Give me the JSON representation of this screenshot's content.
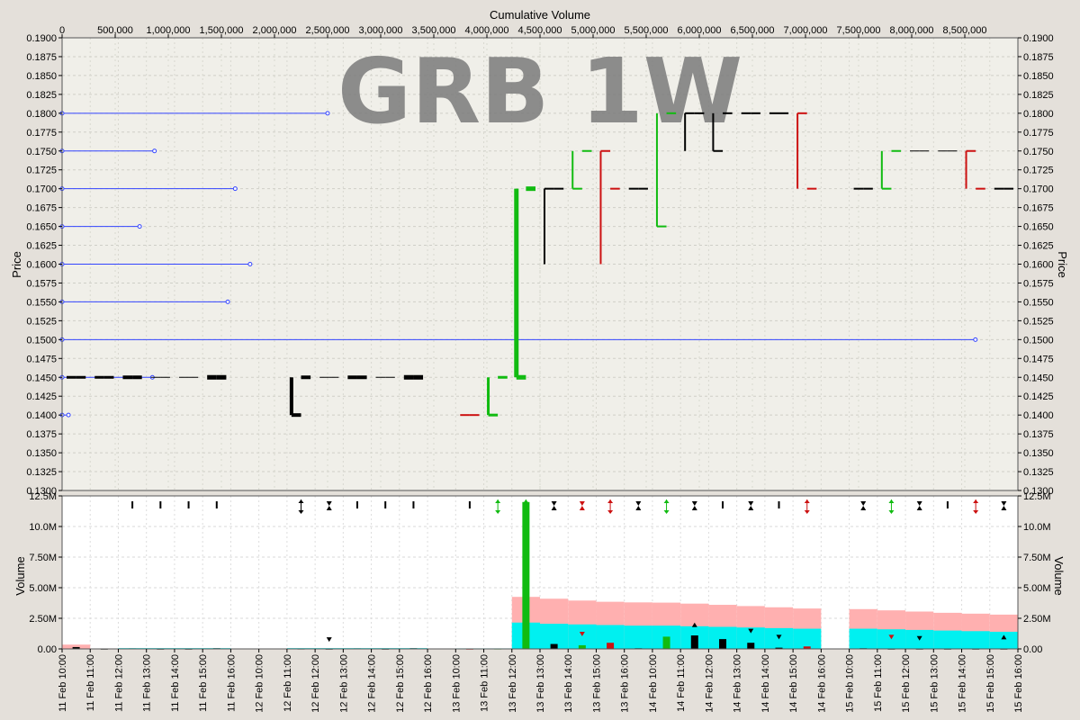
{
  "chart_data": {
    "type": "bar",
    "title": "GRB 1W",
    "price_panel": {
      "ylabel": "Price",
      "ylim": [
        0.13,
        0.19
      ],
      "yticks": [
        "0.1300",
        "0.1325",
        "0.1350",
        "0.1375",
        "0.1400",
        "0.1425",
        "0.1450",
        "0.1475",
        "0.1500",
        "0.1525",
        "0.1550",
        "0.1575",
        "0.1600",
        "0.1625",
        "0.1650",
        "0.1675",
        "0.1700",
        "0.1725",
        "0.1750",
        "0.1775",
        "0.1800",
        "0.1825",
        "0.1850",
        "0.1875",
        "0.1900"
      ],
      "xlabel_top": "Cumulative Volume",
      "cumvol_ticks": [
        "0",
        "500,000",
        "1,000,000",
        "1,500,000",
        "2,000,000",
        "2,500,000",
        "3,000,000",
        "3,500,000",
        "4,000,000",
        "4,500,000",
        "5,000,000",
        "5,500,000",
        "6,000,000",
        "6,500,000",
        "7,000,000",
        "7,500,000",
        "8,000,000",
        "8,500,000"
      ],
      "volume_by_price": [
        {
          "price": 0.18,
          "cumvol": 2500000
        },
        {
          "price": 0.175,
          "cumvol": 870000
        },
        {
          "price": 0.17,
          "cumvol": 1630000
        },
        {
          "price": 0.165,
          "cumvol": 730000
        },
        {
          "price": 0.16,
          "cumvol": 1770000
        },
        {
          "price": 0.155,
          "cumvol": 1560000
        },
        {
          "price": 0.15,
          "cumvol": 8600000
        },
        {
          "price": 0.145,
          "cumvol": 850000
        },
        {
          "price": 0.14,
          "cumvol": 60000
        }
      ],
      "bars": [
        {
          "t": 0.5,
          "o": 0.145,
          "h": 0.145,
          "l": 0.145,
          "c": 0.145,
          "color": "black",
          "w": 3
        },
        {
          "t": 1.5,
          "o": 0.145,
          "h": 0.145,
          "l": 0.145,
          "c": 0.145,
          "color": "black",
          "w": 3
        },
        {
          "t": 2.5,
          "o": 0.145,
          "h": 0.145,
          "l": 0.145,
          "c": 0.145,
          "color": "black",
          "w": 4
        },
        {
          "t": 3.5,
          "o": 0.145,
          "h": 0.145,
          "l": 0.145,
          "c": 0.145,
          "color": "black",
          "w": 1
        },
        {
          "t": 4.5,
          "o": 0.145,
          "h": 0.145,
          "l": 0.145,
          "c": 0.145,
          "color": "black",
          "w": 1
        },
        {
          "t": 5.5,
          "o": 0.145,
          "h": 0.145,
          "l": 0.145,
          "c": 0.145,
          "color": "black",
          "w": 5
        },
        {
          "t": 8.5,
          "o": 0.14,
          "h": 0.145,
          "l": 0.14,
          "c": 0.145,
          "color": "black",
          "w": 4
        },
        {
          "t": 9.5,
          "o": 0.145,
          "h": 0.145,
          "l": 0.145,
          "c": 0.145,
          "color": "black",
          "w": 1
        },
        {
          "t": 10.5,
          "o": 0.145,
          "h": 0.145,
          "l": 0.145,
          "c": 0.145,
          "color": "black",
          "w": 4
        },
        {
          "t": 11.5,
          "o": 0.145,
          "h": 0.145,
          "l": 0.145,
          "c": 0.145,
          "color": "black",
          "w": 1
        },
        {
          "t": 12.5,
          "o": 0.145,
          "h": 0.145,
          "l": 0.145,
          "c": 0.145,
          "color": "black",
          "w": 5
        },
        {
          "t": 14.5,
          "o": 0.14,
          "h": 0.14,
          "l": 0.14,
          "c": 0.14,
          "color": "red",
          "w": 2
        },
        {
          "t": 15.5,
          "o": 0.14,
          "h": 0.145,
          "l": 0.14,
          "c": 0.145,
          "color": "green",
          "w": 3
        },
        {
          "t": 16.5,
          "o": 0.145,
          "h": 0.17,
          "l": 0.145,
          "c": 0.17,
          "color": "green",
          "w": 5
        },
        {
          "t": 17.5,
          "o": 0.17,
          "h": 0.17,
          "l": 0.16,
          "c": 0.17,
          "color": "black",
          "w": 2
        },
        {
          "t": 18.5,
          "o": 0.17,
          "h": 0.175,
          "l": 0.17,
          "c": 0.175,
          "color": "green",
          "w": 2
        },
        {
          "t": 19.5,
          "o": 0.175,
          "h": 0.175,
          "l": 0.16,
          "c": 0.17,
          "color": "red",
          "w": 2
        },
        {
          "t": 20.5,
          "o": 0.17,
          "h": 0.17,
          "l": 0.17,
          "c": 0.17,
          "color": "black",
          "w": 2
        },
        {
          "t": 21.5,
          "o": 0.165,
          "h": 0.18,
          "l": 0.165,
          "c": 0.18,
          "color": "green",
          "w": 2
        },
        {
          "t": 22.5,
          "o": 0.18,
          "h": 0.18,
          "l": 0.175,
          "c": 0.18,
          "color": "black",
          "w": 2
        },
        {
          "t": 23.5,
          "o": 0.175,
          "h": 0.18,
          "l": 0.175,
          "c": 0.18,
          "color": "black",
          "w": 2
        },
        {
          "t": 24.5,
          "o": 0.18,
          "h": 0.18,
          "l": 0.18,
          "c": 0.18,
          "color": "black",
          "w": 2
        },
        {
          "t": 25.5,
          "o": 0.18,
          "h": 0.18,
          "l": 0.18,
          "c": 0.18,
          "color": "black",
          "w": 2
        },
        {
          "t": 26.5,
          "o": 0.18,
          "h": 0.18,
          "l": 0.17,
          "c": 0.17,
          "color": "red",
          "w": 2
        },
        {
          "t": 28.5,
          "o": 0.17,
          "h": 0.17,
          "l": 0.17,
          "c": 0.17,
          "color": "black",
          "w": 2
        },
        {
          "t": 29.5,
          "o": 0.17,
          "h": 0.175,
          "l": 0.17,
          "c": 0.175,
          "color": "green",
          "w": 2
        },
        {
          "t": 30.5,
          "o": 0.175,
          "h": 0.175,
          "l": 0.175,
          "c": 0.175,
          "color": "black",
          "w": 1
        },
        {
          "t": 31.5,
          "o": 0.175,
          "h": 0.175,
          "l": 0.175,
          "c": 0.175,
          "color": "black",
          "w": 1
        },
        {
          "t": 32.5,
          "o": 0.175,
          "h": 0.175,
          "l": 0.17,
          "c": 0.17,
          "color": "red",
          "w": 2
        },
        {
          "t": 33.5,
          "o": 0.17,
          "h": 0.17,
          "l": 0.17,
          "c": 0.17,
          "color": "black",
          "w": 2
        }
      ]
    },
    "volume_panel": {
      "ylabel": "Volume",
      "ylim": [
        0,
        12500000
      ],
      "yticks": [
        "0.00",
        "2.50M",
        "5.00M",
        "7.50M",
        "10.0M",
        "12.5M"
      ],
      "bars": [
        {
          "t": 0.5,
          "v": 150000,
          "color": "black"
        },
        {
          "t": 1.5,
          "v": 20000,
          "color": "black"
        },
        {
          "t": 2.5,
          "v": 40000,
          "color": "black"
        },
        {
          "t": 3.5,
          "v": 20000,
          "color": "black"
        },
        {
          "t": 4.5,
          "v": 20000,
          "color": "black"
        },
        {
          "t": 5.5,
          "v": 50000,
          "color": "black"
        },
        {
          "t": 8.5,
          "v": 30000,
          "color": "black"
        },
        {
          "t": 9.5,
          "v": 20000,
          "color": "black"
        },
        {
          "t": 10.5,
          "v": 40000,
          "color": "black"
        },
        {
          "t": 11.5,
          "v": 20000,
          "color": "black"
        },
        {
          "t": 12.5,
          "v": 50000,
          "color": "black"
        },
        {
          "t": 14.5,
          "v": 20000,
          "color": "red"
        },
        {
          "t": 15.5,
          "v": 30000,
          "color": "green"
        },
        {
          "t": 16.5,
          "v": 12000000,
          "color": "green"
        },
        {
          "t": 17.5,
          "v": 400000,
          "color": "black"
        },
        {
          "t": 18.5,
          "v": 300000,
          "color": "green"
        },
        {
          "t": 19.5,
          "v": 500000,
          "color": "red"
        },
        {
          "t": 20.5,
          "v": 50000,
          "color": "black"
        },
        {
          "t": 21.5,
          "v": 1000000,
          "color": "green"
        },
        {
          "t": 22.5,
          "v": 1100000,
          "color": "black"
        },
        {
          "t": 23.5,
          "v": 800000,
          "color": "black"
        },
        {
          "t": 24.5,
          "v": 500000,
          "color": "black"
        },
        {
          "t": 25.5,
          "v": 100000,
          "color": "black"
        },
        {
          "t": 26.5,
          "v": 200000,
          "color": "red"
        },
        {
          "t": 28.5,
          "v": 50000,
          "color": "black"
        },
        {
          "t": 29.5,
          "v": 20000,
          "color": "black"
        },
        {
          "t": 30.5,
          "v": 20000,
          "color": "black"
        },
        {
          "t": 31.5,
          "v": 20000,
          "color": "black"
        },
        {
          "t": 32.5,
          "v": 20000,
          "color": "black"
        },
        {
          "t": 33.5,
          "v": 20000,
          "color": "black"
        }
      ],
      "avg_pink": [
        {
          "t0": 0,
          "t1": 1,
          "v": 350000
        },
        {
          "t0": 16,
          "t1": 17,
          "v": 4250000
        },
        {
          "t0": 17,
          "t1": 18,
          "v": 4100000
        },
        {
          "t0": 18,
          "t1": 19,
          "v": 3950000
        },
        {
          "t0": 19,
          "t1": 20,
          "v": 3850000
        },
        {
          "t0": 20,
          "t1": 21,
          "v": 3800000
        },
        {
          "t0": 21,
          "t1": 22,
          "v": 3780000
        },
        {
          "t0": 22,
          "t1": 23,
          "v": 3700000
        },
        {
          "t0": 23,
          "t1": 24,
          "v": 3600000
        },
        {
          "t0": 24,
          "t1": 25,
          "v": 3500000
        },
        {
          "t0": 25,
          "t1": 26,
          "v": 3400000
        },
        {
          "t0": 26,
          "t1": 27,
          "v": 3300000
        },
        {
          "t0": 28,
          "t1": 29,
          "v": 3250000
        },
        {
          "t0": 29,
          "t1": 30,
          "v": 3150000
        },
        {
          "t0": 30,
          "t1": 31,
          "v": 3050000
        },
        {
          "t0": 31,
          "t1": 32,
          "v": 2950000
        },
        {
          "t0": 32,
          "t1": 33,
          "v": 2880000
        },
        {
          "t0": 33,
          "t1": 34,
          "v": 2800000
        }
      ],
      "avg_cyan": [
        {
          "t0": 2,
          "t1": 6,
          "v": 60000
        },
        {
          "t0": 8,
          "t1": 13,
          "v": 60000
        },
        {
          "t0": 14,
          "t1": 16,
          "v": 40000
        },
        {
          "t0": 16,
          "t1": 17,
          "v": 2150000
        },
        {
          "t0": 17,
          "t1": 18,
          "v": 2050000
        },
        {
          "t0": 18,
          "t1": 19,
          "v": 2000000
        },
        {
          "t0": 19,
          "t1": 20,
          "v": 1950000
        },
        {
          "t0": 20,
          "t1": 21,
          "v": 1900000
        },
        {
          "t0": 21,
          "t1": 22,
          "v": 1900000
        },
        {
          "t0": 22,
          "t1": 23,
          "v": 1850000
        },
        {
          "t0": 23,
          "t1": 24,
          "v": 1800000
        },
        {
          "t0": 24,
          "t1": 25,
          "v": 1750000
        },
        {
          "t0": 25,
          "t1": 26,
          "v": 1700000
        },
        {
          "t0": 26,
          "t1": 27,
          "v": 1650000
        },
        {
          "t0": 28,
          "t1": 29,
          "v": 1650000
        },
        {
          "t0": 29,
          "t1": 30,
          "v": 1600000
        },
        {
          "t0": 30,
          "t1": 31,
          "v": 1550000
        },
        {
          "t0": 31,
          "t1": 32,
          "v": 1500000
        },
        {
          "t0": 32,
          "t1": 33,
          "v": 1450000
        },
        {
          "t0": 33,
          "t1": 34,
          "v": 1400000
        }
      ],
      "top_markers": [
        {
          "t": 2.5,
          "type": "dash",
          "color": "black"
        },
        {
          "t": 3.5,
          "type": "dash",
          "color": "black"
        },
        {
          "t": 4.5,
          "type": "dash",
          "color": "black"
        },
        {
          "t": 5.5,
          "type": "dash",
          "color": "black"
        },
        {
          "t": 8.5,
          "type": "updown",
          "color": "black"
        },
        {
          "t": 9.5,
          "type": "hourglass",
          "color": "black"
        },
        {
          "t": 10.5,
          "type": "dash",
          "color": "black"
        },
        {
          "t": 11.5,
          "type": "dash",
          "color": "black"
        },
        {
          "t": 12.5,
          "type": "dash",
          "color": "black"
        },
        {
          "t": 14.5,
          "type": "dash",
          "color": "black"
        },
        {
          "t": 15.5,
          "type": "updown",
          "color": "green"
        },
        {
          "t": 16.5,
          "type": "updown",
          "color": "green"
        },
        {
          "t": 17.5,
          "type": "hourglass",
          "color": "black"
        },
        {
          "t": 18.5,
          "type": "hourglass",
          "color": "red"
        },
        {
          "t": 19.5,
          "type": "updown",
          "color": "red"
        },
        {
          "t": 20.5,
          "type": "hourglass",
          "color": "black"
        },
        {
          "t": 21.5,
          "type": "updown",
          "color": "green"
        },
        {
          "t": 22.5,
          "type": "hourglass",
          "color": "black"
        },
        {
          "t": 23.5,
          "type": "dash",
          "color": "black"
        },
        {
          "t": 24.5,
          "type": "hourglass",
          "color": "black"
        },
        {
          "t": 25.5,
          "type": "dash",
          "color": "black"
        },
        {
          "t": 26.5,
          "type": "updown",
          "color": "red"
        },
        {
          "t": 28.5,
          "type": "hourglass",
          "color": "black"
        },
        {
          "t": 29.5,
          "type": "updown",
          "color": "green"
        },
        {
          "t": 30.5,
          "type": "hourglass",
          "color": "black"
        },
        {
          "t": 31.5,
          "type": "dash",
          "color": "black"
        },
        {
          "t": 32.5,
          "type": "updown",
          "color": "red"
        },
        {
          "t": 33.5,
          "type": "hourglass",
          "color": "black"
        }
      ],
      "small_markers": [
        {
          "t": 9.5,
          "v": 800000,
          "dir": "down",
          "color": "black"
        },
        {
          "t": 18.5,
          "v": 1250000,
          "dir": "down",
          "color": "red"
        },
        {
          "t": 22.5,
          "v": 2000000,
          "dir": "up",
          "color": "black"
        },
        {
          "t": 24.5,
          "v": 1500000,
          "dir": "down",
          "color": "black"
        },
        {
          "t": 25.5,
          "v": 1000000,
          "dir": "down",
          "color": "black"
        },
        {
          "t": 29.5,
          "v": 1000000,
          "dir": "down",
          "color": "red"
        },
        {
          "t": 30.5,
          "v": 900000,
          "dir": "down",
          "color": "black"
        },
        {
          "t": 33.5,
          "v": 1000000,
          "dir": "up",
          "color": "black"
        }
      ]
    },
    "time_labels": [
      "11 Feb 10:00",
      "11 Feb 11:00",
      "11 Feb 12:00",
      "11 Feb 13:00",
      "11 Feb 14:00",
      "11 Feb 15:00",
      "11 Feb 16:00",
      "12 Feb 10:00",
      "12 Feb 11:00",
      "12 Feb 12:00",
      "12 Feb 13:00",
      "12 Feb 14:00",
      "12 Feb 15:00",
      "12 Feb 16:00",
      "13 Feb 10:00",
      "13 Feb 11:00",
      "13 Feb 12:00",
      "13 Feb 13:00",
      "13 Feb 14:00",
      "13 Feb 15:00",
      "13 Feb 16:00",
      "14 Feb 10:00",
      "14 Feb 11:00",
      "14 Feb 12:00",
      "14 Feb 13:00",
      "14 Feb 14:00",
      "14 Feb 15:00",
      "14 Feb 16:00",
      "15 Feb 10:00",
      "15 Feb 11:00",
      "15 Feb 12:00",
      "15 Feb 13:00",
      "15 Feb 14:00",
      "15 Feb 15:00",
      "15 Feb 16:00"
    ],
    "colors": {
      "up": "#11bb11",
      "down": "#cc1111",
      "flat": "#000000",
      "volume_profile": "#3344ff",
      "avg_pink": "#ffb0b0",
      "avg_cyan": "#00f0f0",
      "price_bg": "#f0efe9",
      "volume_bg": "#ffffff",
      "outer_bg": "#e4e0da",
      "watermark": "#7a7a7a"
    }
  }
}
